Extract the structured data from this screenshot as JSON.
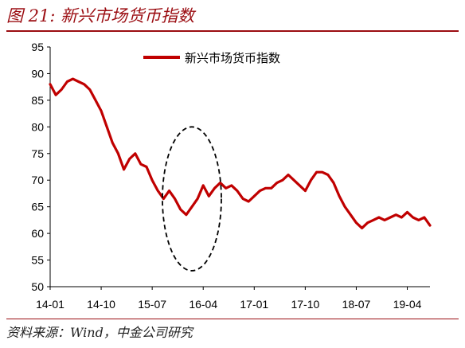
{
  "header": {
    "title": "图 21:  新兴市场货币指数"
  },
  "footer": {
    "source": "资料来源：Wind，中金公司研究"
  },
  "colors": {
    "series": "#c00000",
    "accent": "#9b0d12",
    "axis": "#000000",
    "annotation": "#000000"
  },
  "chart_data": {
    "type": "line",
    "title": "",
    "xlabel": "",
    "ylabel": "",
    "ylim": [
      50,
      95
    ],
    "yticks": [
      50,
      55,
      60,
      65,
      70,
      75,
      80,
      85,
      90,
      95
    ],
    "xticks": [
      "14-01",
      "14-10",
      "15-07",
      "16-04",
      "17-01",
      "17-10",
      "18-07",
      "19-04"
    ],
    "grid": false,
    "legend": {
      "position": "top-center",
      "entries": [
        "新兴市场货币指数"
      ]
    },
    "annotation": {
      "shape": "dashed-ellipse",
      "x_center": "2016-02",
      "y_range": [
        53,
        80
      ]
    },
    "series": [
      {
        "name": "新兴市场货币指数",
        "x": [
          "2014-01",
          "2014-02",
          "2014-03",
          "2014-04",
          "2014-05",
          "2014-06",
          "2014-07",
          "2014-08",
          "2014-09",
          "2014-10",
          "2014-11",
          "2014-12",
          "2015-01",
          "2015-02",
          "2015-03",
          "2015-04",
          "2015-05",
          "2015-06",
          "2015-07",
          "2015-08",
          "2015-09",
          "2015-10",
          "2015-11",
          "2015-12",
          "2016-01",
          "2016-02",
          "2016-03",
          "2016-04",
          "2016-05",
          "2016-06",
          "2016-07",
          "2016-08",
          "2016-09",
          "2016-10",
          "2016-11",
          "2016-12",
          "2017-01",
          "2017-02",
          "2017-03",
          "2017-04",
          "2017-05",
          "2017-06",
          "2017-07",
          "2017-08",
          "2017-09",
          "2017-10",
          "2017-11",
          "2017-12",
          "2018-01",
          "2018-02",
          "2018-03",
          "2018-04",
          "2018-05",
          "2018-06",
          "2018-07",
          "2018-08",
          "2018-09",
          "2018-10",
          "2018-11",
          "2018-12",
          "2019-01",
          "2019-02",
          "2019-03",
          "2019-04",
          "2019-05",
          "2019-06",
          "2019-07",
          "2019-08"
        ],
        "values": [
          88,
          86,
          87,
          88.5,
          89,
          88.5,
          88,
          87,
          85,
          83,
          80,
          77,
          75,
          72,
          74,
          75,
          73,
          72.5,
          70,
          68,
          66.5,
          68,
          66.5,
          64.5,
          63.5,
          65,
          66.5,
          69,
          67,
          68.5,
          69.5,
          68.5,
          69,
          68,
          66.5,
          66,
          67,
          68,
          68.5,
          68.5,
          69.5,
          70,
          71,
          70,
          69,
          68,
          70,
          71.5,
          71.5,
          71,
          69.5,
          67,
          65,
          63.5,
          62,
          61,
          62,
          62.5,
          63,
          62.5,
          63,
          63.5,
          63,
          64,
          63,
          62.5,
          63,
          61.5
        ]
      }
    ]
  }
}
